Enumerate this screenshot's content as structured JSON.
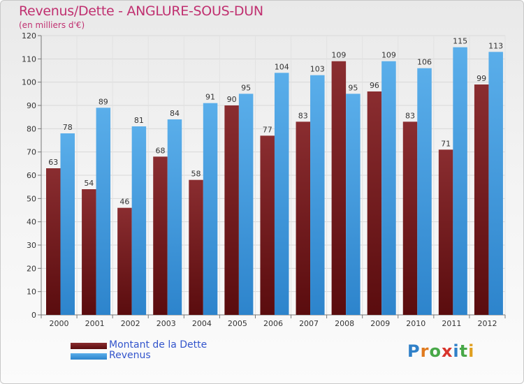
{
  "title": "Revenus/Dette - ANGLURE-SOUS-DUN",
  "subtitle": "(en milliers d'€)",
  "logo": {
    "text": "Proxiti",
    "letter_colors": [
      "#2f80c8",
      "#e07a1e",
      "#48a848",
      "#d8342c",
      "#2f80c8",
      "#48a848",
      "#e0a020"
    ]
  },
  "chart_data": {
    "type": "bar",
    "title": "Revenus/Dette - ANGLURE-SOUS-DUN",
    "subtitle": "(en milliers d'€)",
    "xlabel": "",
    "ylabel": "",
    "ylim": [
      0,
      120
    ],
    "yticks": [
      0,
      10,
      20,
      30,
      40,
      50,
      60,
      70,
      80,
      90,
      100,
      110,
      120
    ],
    "grid": true,
    "legend_position": "bottom-left",
    "categories": [
      "2000",
      "2001",
      "2002",
      "2003",
      "2004",
      "2005",
      "2006",
      "2007",
      "2008",
      "2009",
      "2010",
      "2011",
      "2012"
    ],
    "series": [
      {
        "name": "Montant de la Dette",
        "color": "#7a1d20",
        "values": [
          63,
          54,
          46,
          68,
          58,
          90,
          77,
          83,
          109,
          96,
          83,
          71,
          99
        ]
      },
      {
        "name": "Revenus",
        "color": "#3f9be0",
        "values": [
          78,
          89,
          81,
          84,
          91,
          95,
          104,
          103,
          95,
          109,
          106,
          115,
          113
        ]
      }
    ]
  }
}
